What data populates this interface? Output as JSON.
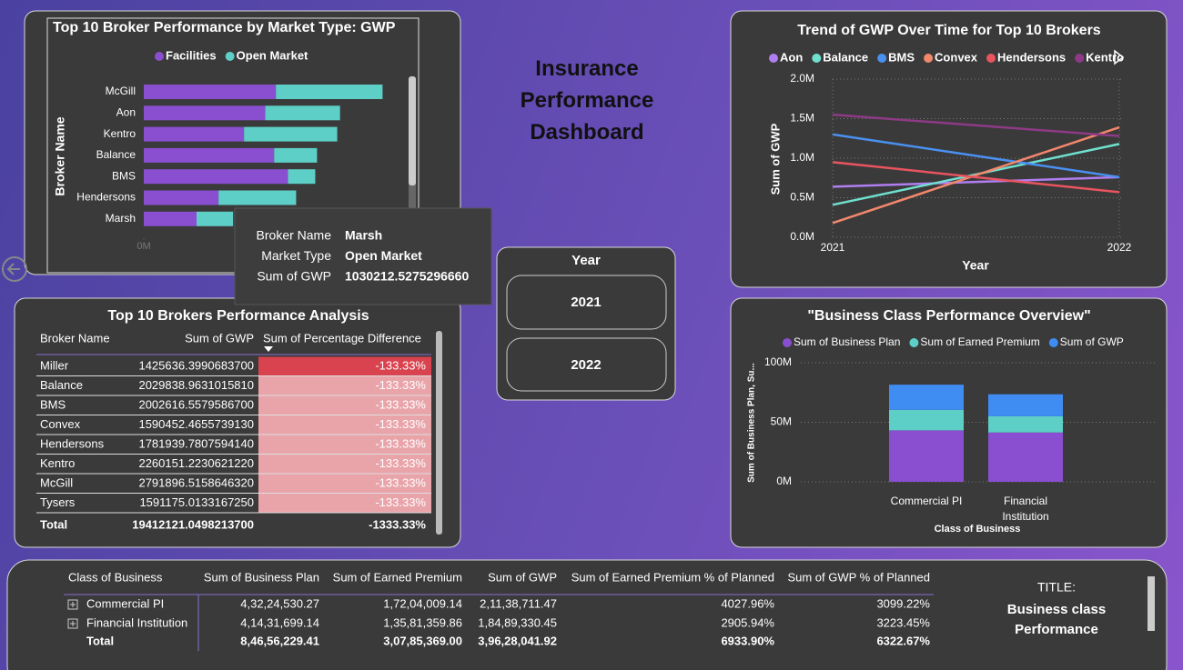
{
  "dashboard_title": "Insurance Performance Dashboard",
  "chart_data": [
    {
      "type": "bar",
      "orientation": "horizontal",
      "stacked": true,
      "title": "Top 10 Broker Performance by Market Type: GWP",
      "y_label": "Broker Name",
      "categories": [
        "McGill",
        "Aon",
        "Kentro",
        "Balance",
        "BMS",
        "Hendersons",
        "Marsh"
      ],
      "series": [
        {
          "name": "Facilities",
          "color": "#8a4fd0",
          "values": [
            3730000,
            3430000,
            2830000,
            3680000,
            4070000,
            2110000,
            1490000
          ]
        },
        {
          "name": "Open Market",
          "color": "#5ecfc6",
          "values": [
            3010000,
            2110000,
            2630000,
            1210000,
            770000,
            2190000,
            1030000
          ]
        }
      ],
      "xlim": [
        0,
        7500000
      ],
      "xticks": [
        {
          "value": 0,
          "label": "0M"
        }
      ]
    },
    {
      "type": "line",
      "title": "Trend of GWP Over Time for Top 10 Brokers",
      "x_label": "Year",
      "y_label": "Sum of GWP",
      "categories": [
        "2021",
        "2022"
      ],
      "series": [
        {
          "name": "Aon",
          "color": "#b07ef0",
          "values": [
            640000,
            760000
          ]
        },
        {
          "name": "Balance",
          "color": "#6fe0cf",
          "values": [
            410000,
            1180000
          ]
        },
        {
          "name": "BMS",
          "color": "#4a90f0",
          "values": [
            1300000,
            760000
          ]
        },
        {
          "name": "Convex",
          "color": "#f2876c",
          "values": [
            180000,
            1390000
          ]
        },
        {
          "name": "Hendersons",
          "color": "#e8545f",
          "values": [
            950000,
            570000
          ]
        },
        {
          "name": "Kentro",
          "color": "#8e3a86",
          "values": [
            1550000,
            1280000
          ]
        }
      ],
      "ylim": [
        0,
        2000000
      ],
      "yticks": [
        {
          "value": 0,
          "label": "0.0M"
        },
        {
          "value": 500000,
          "label": "0.5M"
        },
        {
          "value": 1000000,
          "label": "1.0M"
        },
        {
          "value": 1500000,
          "label": "1.5M"
        },
        {
          "value": 2000000,
          "label": "2.0M"
        }
      ],
      "grid": true
    },
    {
      "type": "bar",
      "orientation": "vertical",
      "stacked": true,
      "title": "\"Business Class Performance Overview\"",
      "x_label": "Class of Business",
      "y_label": "Sum of Business Plan, Su...",
      "categories": [
        "Commercial PI",
        "Financial Institution"
      ],
      "series": [
        {
          "name": "Sum of Business Plan",
          "color": "#8a4fd0",
          "values": [
            43224530.27,
            41431699.14
          ]
        },
        {
          "name": "Sum of Earned Premium",
          "color": "#5ecfc6",
          "values": [
            17204009.14,
            13581359.86
          ]
        },
        {
          "name": "Sum of GWP",
          "color": "#3f8cf2",
          "values": [
            21138711.47,
            18489330.45
          ]
        }
      ],
      "ylim": [
        0,
        100000000
      ],
      "yticks": [
        {
          "value": 0,
          "label": "0M"
        },
        {
          "value": 50000000,
          "label": "50M"
        },
        {
          "value": 100000000,
          "label": "100M"
        }
      ],
      "grid": true
    }
  ],
  "tooltip": [
    [
      "Broker Name",
      "Marsh"
    ],
    [
      "Market Type",
      "Open Market"
    ],
    [
      "Sum of GWP",
      "1030212.5275296660"
    ]
  ],
  "broker_table": {
    "title": "Top 10 Brokers Performance Analysis",
    "columns": [
      "Broker Name",
      "Sum of GWP",
      "Sum of Percentage Difference"
    ],
    "rows": [
      [
        "Miller",
        "1425636.3990683700",
        "-133.33%"
      ],
      [
        "Balance",
        "2029838.9631015810",
        "-133.33%"
      ],
      [
        "BMS",
        "2002616.5579586700",
        "-133.33%"
      ],
      [
        "Convex",
        "1590452.4655739130",
        "-133.33%"
      ],
      [
        "Hendersons",
        "1781939.7807594140",
        "-133.33%"
      ],
      [
        "Kentro",
        "2260151.2230621220",
        "-133.33%"
      ],
      [
        "McGill",
        "2791896.5158646320",
        "-133.33%"
      ],
      [
        "Tysers",
        "1591175.0133167250",
        "-133.33%"
      ]
    ],
    "total": [
      "Total",
      "19412121.0498213700",
      "-1333.33%"
    ]
  },
  "year_slicer": {
    "title": "Year",
    "options": [
      "2021",
      "2022"
    ]
  },
  "class_table": {
    "columns": [
      "Class of Business",
      "Sum of Business Plan",
      "Sum of Earned Premium",
      "Sum of GWP",
      "Sum of Earned Premium % of Planned",
      "Sum of GWP % of Planned"
    ],
    "rows": [
      [
        "Commercial PI",
        "4,32,24,530.27",
        "1,72,04,009.14",
        "2,11,38,711.47",
        "4027.96%",
        "3099.22%"
      ],
      [
        "Financial Institution",
        "4,14,31,699.14",
        "1,35,81,359.86",
        "1,84,89,330.45",
        "2905.94%",
        "3223.45%"
      ]
    ],
    "total": [
      "Total",
      "8,46,56,229.41",
      "3,07,85,369.00",
      "3,96,28,041.92",
      "6933.90%",
      "6322.67%"
    ]
  },
  "card": {
    "label": "TITLE:",
    "value": "Business class Performance"
  }
}
